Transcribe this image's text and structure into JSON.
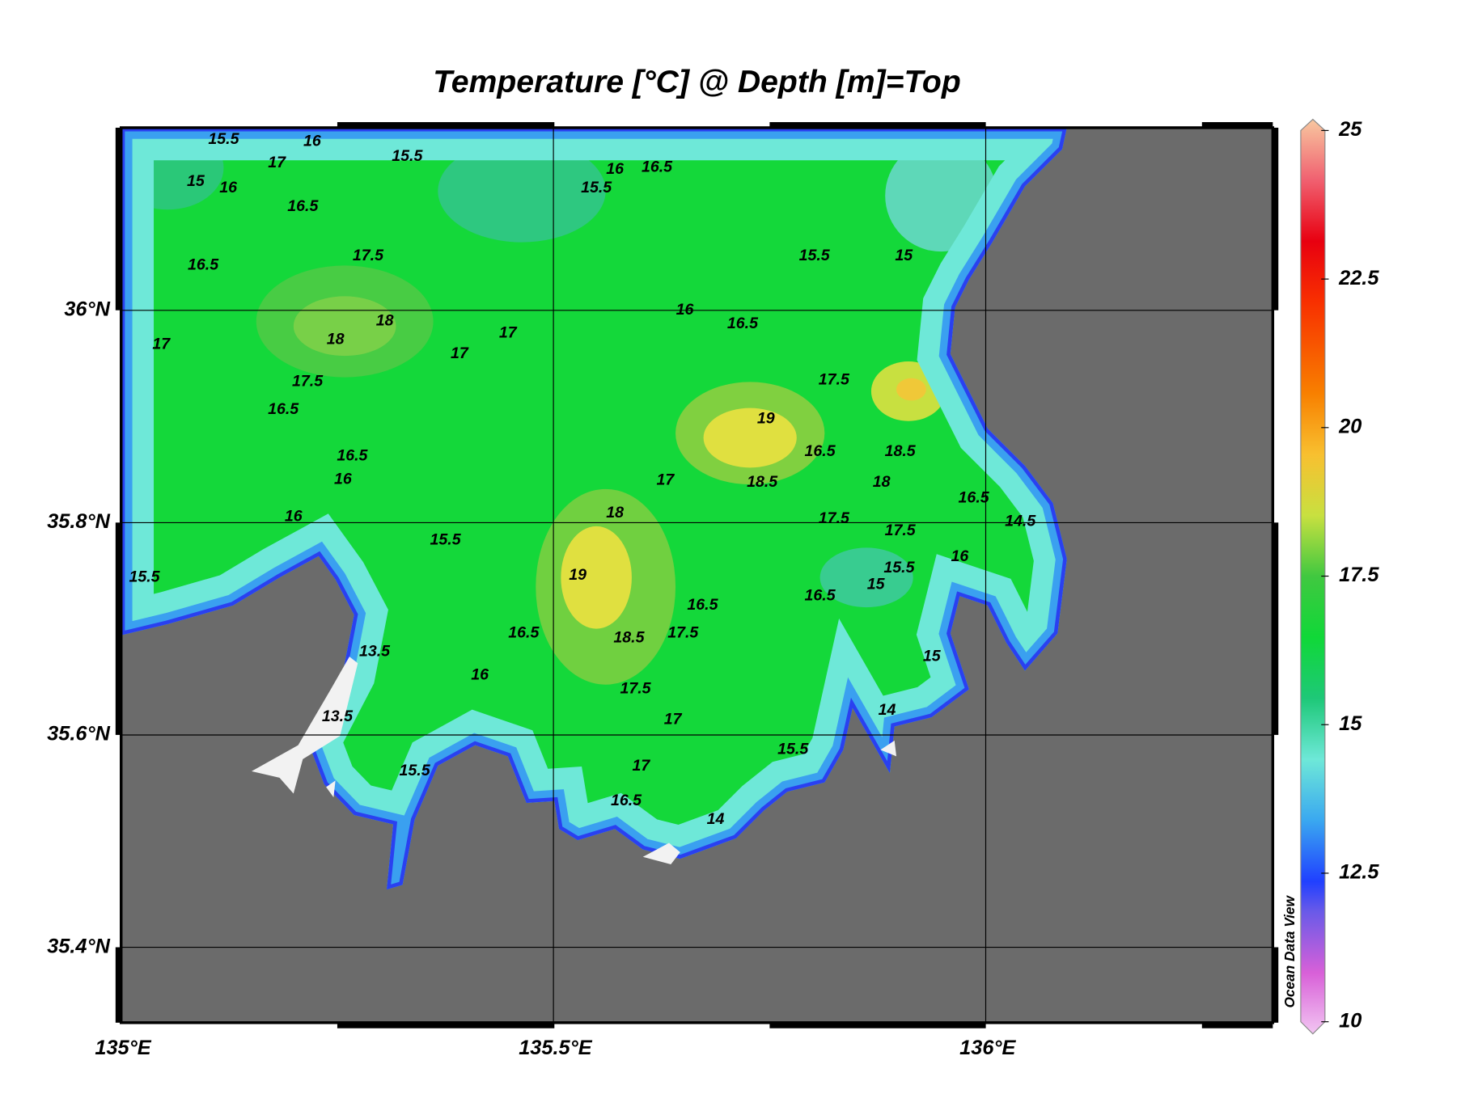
{
  "title": "Temperature [°C] @ Depth [m]=Top",
  "watermark": "Ocean Data View",
  "map": {
    "xlim": [
      135,
      136.332
    ],
    "ylim": [
      35.329,
      36.172
    ],
    "xticks": [
      {
        "value": 135,
        "label": "135°E"
      },
      {
        "value": 135.5,
        "label": "135.5°E"
      },
      {
        "value": 136,
        "label": "136°E"
      }
    ],
    "yticks": [
      {
        "value": 35.4,
        "label": "35.4°N"
      },
      {
        "value": 35.6,
        "label": "35.6°N"
      },
      {
        "value": 35.8,
        "label": "35.8°N"
      },
      {
        "value": 36,
        "label": "36°N"
      }
    ],
    "grid": true,
    "land_color": "#6b6b6b"
  },
  "colorbar": {
    "lim": [
      10,
      25
    ],
    "ticks": [
      10,
      12.5,
      15,
      17.5,
      20,
      22.5,
      25
    ],
    "colors": [
      {
        "value": 10,
        "color": "#f2c6f2"
      },
      {
        "value": 11,
        "color": "#d860d8"
      },
      {
        "value": 12,
        "color": "#6a5ae8"
      },
      {
        "value": 12.5,
        "color": "#2040ff"
      },
      {
        "value": 13.5,
        "color": "#3aa8f0"
      },
      {
        "value": 14.5,
        "color": "#6ee8d8"
      },
      {
        "value": 15.5,
        "color": "#1ec878"
      },
      {
        "value": 16.5,
        "color": "#10d838"
      },
      {
        "value": 17.5,
        "color": "#40c840"
      },
      {
        "value": 18.5,
        "color": "#c8e040"
      },
      {
        "value": 19.5,
        "color": "#f8c030"
      },
      {
        "value": 20.5,
        "color": "#f88000"
      },
      {
        "value": 22,
        "color": "#f83000"
      },
      {
        "value": 23,
        "color": "#e80010"
      },
      {
        "value": 24,
        "color": "#f06070"
      },
      {
        "value": 25,
        "color": "#f8c8a0"
      }
    ]
  },
  "contour_labels": [
    15.5,
    16,
    15,
    17,
    16,
    15.5,
    16.5,
    16.5,
    17.5,
    18,
    18,
    17,
    17,
    17.5,
    16.5,
    16.5,
    16,
    16,
    15.5,
    17,
    16,
    15.5,
    16.5,
    16,
    16.5,
    15.5,
    15,
    17.5,
    19,
    18.5,
    16.5,
    18.5,
    18,
    17,
    18,
    19,
    18.5,
    17.5,
    16.5,
    16.5,
    17.5,
    17,
    16,
    15.5,
    16.5,
    15,
    15.5,
    16,
    16.5,
    14.5,
    14,
    15.5,
    17,
    16.5,
    15.5,
    14,
    13.5,
    13.5,
    15,
    17.5,
    17.5
  ]
}
